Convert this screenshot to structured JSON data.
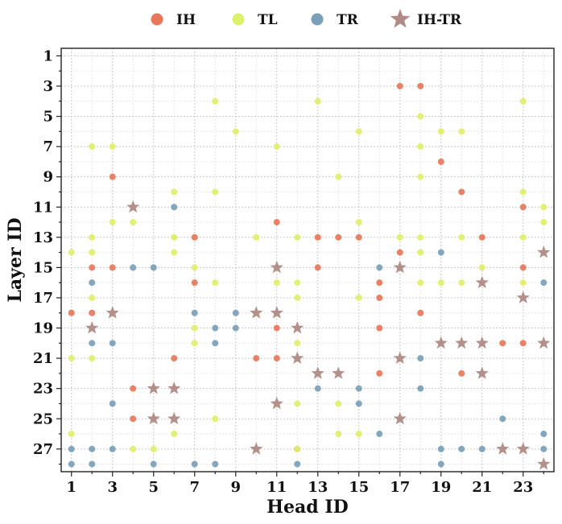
{
  "chart_data": {
    "type": "scatter",
    "title": "",
    "xlabel": "Head ID",
    "ylabel": "Layer ID",
    "xlim": [
      0.5,
      24.5
    ],
    "ylim": [
      28.5,
      0.5
    ],
    "y_inverted": true,
    "x_ticks": [
      1,
      3,
      5,
      7,
      9,
      11,
      13,
      15,
      17,
      19,
      21,
      23
    ],
    "y_ticks": [
      1,
      3,
      5,
      7,
      9,
      11,
      13,
      15,
      17,
      19,
      21,
      23,
      25,
      27
    ],
    "grid": true,
    "legend_position": "top-center",
    "series": [
      {
        "name": "IH",
        "color": "#e8775a",
        "marker": "circle",
        "points": [
          [
            17,
            3
          ],
          [
            18,
            3
          ],
          [
            19,
            8
          ],
          [
            3,
            9
          ],
          [
            20,
            10
          ],
          [
            23,
            11
          ],
          [
            11,
            12
          ],
          [
            7,
            13
          ],
          [
            13,
            13
          ],
          [
            14,
            13
          ],
          [
            15,
            13
          ],
          [
            21,
            13
          ],
          [
            2,
            15
          ],
          [
            3,
            15
          ],
          [
            13,
            15
          ],
          [
            23,
            15
          ],
          [
            7,
            16
          ],
          [
            17,
            14
          ],
          [
            16,
            17
          ],
          [
            1,
            18
          ],
          [
            2,
            18
          ],
          [
            18,
            18
          ],
          [
            11,
            19
          ],
          [
            16,
            19
          ],
          [
            6,
            21
          ],
          [
            10,
            21
          ],
          [
            11,
            21
          ],
          [
            22,
            20
          ],
          [
            23,
            20
          ],
          [
            16,
            22
          ],
          [
            20,
            22
          ],
          [
            4,
            23
          ],
          [
            4,
            25
          ],
          [
            12,
            27
          ],
          [
            16,
            16
          ]
        ]
      },
      {
        "name": "TL",
        "color": "#dff06a",
        "marker": "circle",
        "points": [
          [
            8,
            4
          ],
          [
            13,
            4
          ],
          [
            23,
            4
          ],
          [
            18,
            5
          ],
          [
            9,
            6
          ],
          [
            15,
            6
          ],
          [
            19,
            6
          ],
          [
            20,
            6
          ],
          [
            2,
            7
          ],
          [
            3,
            7
          ],
          [
            11,
            7
          ],
          [
            18,
            7
          ],
          [
            14,
            9
          ],
          [
            18,
            9
          ],
          [
            6,
            10
          ],
          [
            8,
            10
          ],
          [
            23,
            10
          ],
          [
            24,
            11
          ],
          [
            3,
            12
          ],
          [
            4,
            12
          ],
          [
            15,
            12
          ],
          [
            24,
            12
          ],
          [
            2,
            13
          ],
          [
            6,
            13
          ],
          [
            10,
            13
          ],
          [
            12,
            13
          ],
          [
            17,
            13
          ],
          [
            18,
            13
          ],
          [
            20,
            13
          ],
          [
            23,
            13
          ],
          [
            1,
            14
          ],
          [
            2,
            14
          ],
          [
            6,
            14
          ],
          [
            18,
            14
          ],
          [
            7,
            15
          ],
          [
            21,
            15
          ],
          [
            8,
            16
          ],
          [
            11,
            16
          ],
          [
            12,
            16
          ],
          [
            18,
            16
          ],
          [
            23,
            16
          ],
          [
            19,
            16
          ],
          [
            20,
            16
          ],
          [
            2,
            17
          ],
          [
            12,
            17
          ],
          [
            15,
            17
          ],
          [
            7,
            19
          ],
          [
            7,
            20
          ],
          [
            12,
            20
          ],
          [
            1,
            21
          ],
          [
            2,
            21
          ],
          [
            12,
            24
          ],
          [
            14,
            24
          ],
          [
            8,
            25
          ],
          [
            1,
            26
          ],
          [
            6,
            26
          ],
          [
            14,
            26
          ],
          [
            15,
            26
          ],
          [
            4,
            27
          ],
          [
            5,
            27
          ],
          [
            12,
            27
          ]
        ]
      },
      {
        "name": "TR",
        "color": "#7a9fb8",
        "marker": "circle",
        "points": [
          [
            6,
            11
          ],
          [
            4,
            15
          ],
          [
            5,
            15
          ],
          [
            16,
            15
          ],
          [
            19,
            14
          ],
          [
            2,
            16
          ],
          [
            24,
            16
          ],
          [
            7,
            18
          ],
          [
            9,
            18
          ],
          [
            8,
            19
          ],
          [
            9,
            19
          ],
          [
            2,
            20
          ],
          [
            3,
            20
          ],
          [
            8,
            20
          ],
          [
            18,
            21
          ],
          [
            13,
            23
          ],
          [
            15,
            23
          ],
          [
            18,
            23
          ],
          [
            3,
            24
          ],
          [
            15,
            24
          ],
          [
            22,
            25
          ],
          [
            16,
            26
          ],
          [
            24,
            26
          ],
          [
            1,
            27
          ],
          [
            2,
            27
          ],
          [
            3,
            27
          ],
          [
            19,
            27
          ],
          [
            20,
            27
          ],
          [
            21,
            27
          ],
          [
            24,
            27
          ],
          [
            1,
            28
          ],
          [
            2,
            28
          ],
          [
            5,
            28
          ],
          [
            7,
            28
          ],
          [
            8,
            28
          ],
          [
            12,
            28
          ],
          [
            19,
            28
          ]
        ]
      },
      {
        "name": "IH-TR",
        "color": "#b08a84",
        "marker": "star",
        "points": [
          [
            4,
            11
          ],
          [
            24,
            14
          ],
          [
            11,
            15
          ],
          [
            17,
            15
          ],
          [
            21,
            16
          ],
          [
            23,
            17
          ],
          [
            3,
            18
          ],
          [
            10,
            18
          ],
          [
            11,
            18
          ],
          [
            2,
            19
          ],
          [
            12,
            19
          ],
          [
            19,
            20
          ],
          [
            20,
            20
          ],
          [
            21,
            20
          ],
          [
            24,
            20
          ],
          [
            12,
            21
          ],
          [
            17,
            21
          ],
          [
            13,
            22
          ],
          [
            14,
            22
          ],
          [
            21,
            22
          ],
          [
            5,
            23
          ],
          [
            6,
            23
          ],
          [
            11,
            24
          ],
          [
            5,
            25
          ],
          [
            6,
            25
          ],
          [
            17,
            25
          ],
          [
            10,
            27
          ],
          [
            22,
            27
          ],
          [
            23,
            27
          ],
          [
            24,
            28
          ]
        ]
      }
    ]
  }
}
